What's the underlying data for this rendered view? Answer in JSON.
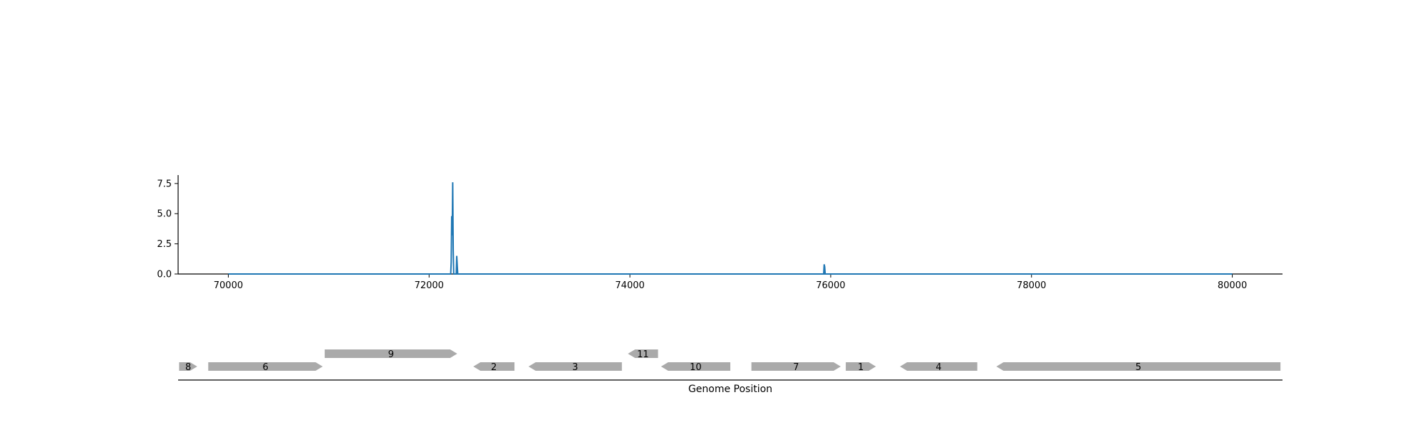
{
  "chart_data": [
    {
      "type": "line",
      "xlim": [
        69500,
        80500
      ],
      "ylim": [
        0,
        8.2
      ],
      "x_ticks": [
        70000,
        72000,
        74000,
        76000,
        78000,
        80000
      ],
      "y_ticks": [
        0.0,
        2.5,
        5.0,
        7.5
      ],
      "x_tick_labels": [
        "70000",
        "72000",
        "74000",
        "76000",
        "78000",
        "80000"
      ],
      "y_tick_labels": [
        "0.0",
        "2.5",
        "5.0",
        "7.5"
      ],
      "grid": false,
      "series": [
        {
          "color": "#1f77b4",
          "x": [
            70000,
            72200,
            72215,
            72220,
            72225,
            72230,
            72235,
            72240,
            72245,
            72250,
            72255,
            72260,
            72265,
            72270,
            72275,
            72280,
            72285,
            72290,
            72295,
            75930,
            75935,
            75940,
            75945,
            80000
          ],
          "y": [
            0,
            0,
            0,
            1.0,
            4.8,
            3.2,
            7.6,
            2.0,
            0,
            0,
            0,
            0,
            0,
            0,
            1.5,
            0.7,
            0,
            0,
            0,
            0,
            0.8,
            0.6,
            0,
            0
          ]
        }
      ]
    },
    {
      "type": "gene-map",
      "xlabel": "Genome Position",
      "xlim": [
        69500,
        80500
      ],
      "color": "#aaaaaa",
      "genes": [
        {
          "label": "8",
          "start": 69510,
          "end": 69690,
          "strand": "+",
          "row": 0
        },
        {
          "label": "6",
          "start": 69800,
          "end": 70940,
          "strand": "+",
          "row": 0
        },
        {
          "label": "9",
          "start": 70960,
          "end": 72280,
          "strand": "+",
          "row": 1
        },
        {
          "label": "2",
          "start": 72440,
          "end": 72850,
          "strand": "-",
          "row": 0
        },
        {
          "label": "3",
          "start": 72990,
          "end": 73920,
          "strand": "-",
          "row": 0
        },
        {
          "label": "11",
          "start": 73980,
          "end": 74280,
          "strand": "-",
          "row": 1
        },
        {
          "label": "10",
          "start": 74310,
          "end": 75000,
          "strand": "-",
          "row": 0
        },
        {
          "label": "7",
          "start": 75210,
          "end": 76100,
          "strand": "+",
          "row": 0
        },
        {
          "label": "1",
          "start": 76150,
          "end": 76450,
          "strand": "+",
          "row": 0
        },
        {
          "label": "4",
          "start": 76690,
          "end": 77460,
          "strand": "-",
          "row": 0
        },
        {
          "label": "5",
          "start": 77650,
          "end": 80480,
          "strand": "-",
          "row": 0
        }
      ]
    }
  ]
}
